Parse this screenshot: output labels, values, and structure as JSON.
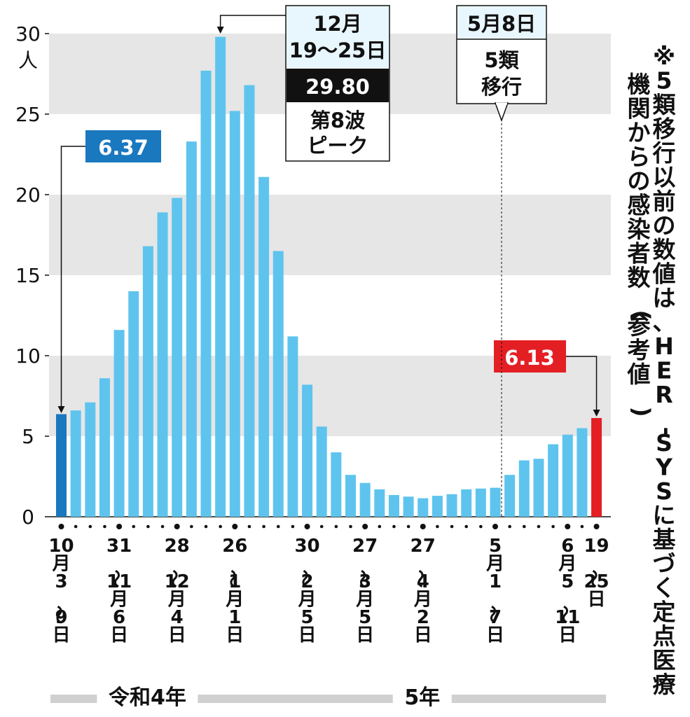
{
  "chart_data": {
    "type": "bar",
    "unit": "人",
    "ylim": [
      0,
      30
    ],
    "yticks": [
      0,
      5,
      10,
      15,
      20,
      25,
      30
    ],
    "grid": "alternating horizontal bands",
    "values": [
      6.37,
      6.6,
      7.1,
      8.6,
      11.6,
      14.0,
      16.8,
      18.9,
      19.8,
      23.3,
      27.7,
      29.8,
      25.2,
      26.8,
      21.1,
      16.5,
      11.2,
      8.2,
      5.6,
      4.0,
      2.6,
      2.1,
      1.7,
      1.35,
      1.25,
      1.15,
      1.3,
      1.4,
      1.7,
      1.75,
      1.8,
      2.6,
      3.5,
      3.6,
      4.5,
      5.1,
      5.5,
      6.13
    ],
    "x_labels": [
      {
        "index": 0,
        "text": "10月3〜9日"
      },
      {
        "index": 4,
        "text": "31〜11月6日"
      },
      {
        "index": 8,
        "text": "28〜12月4日"
      },
      {
        "index": 12,
        "text": "26〜1月1日"
      },
      {
        "index": 17,
        "text": "30〜2月5日"
      },
      {
        "index": 21,
        "text": "27〜3月5日"
      },
      {
        "index": 25,
        "text": "27〜4月2日"
      },
      {
        "index": 30,
        "text": "5月1〜7日"
      },
      {
        "index": 35,
        "text": "6月5〜11日"
      },
      {
        "index": 37,
        "text": "19〜25日"
      }
    ],
    "eras": [
      {
        "label": "令和4年",
        "start": 0,
        "end": 12
      },
      {
        "label": "5年",
        "start": 13,
        "end": 37
      }
    ],
    "colors": {
      "bar": "#5ec4ee",
      "first_bar": "#1a78bf",
      "last_bar": "#e41f24",
      "band": "#e6e6e6",
      "first_label_bg": "#1a78bf",
      "last_label_bg": "#e41f24",
      "box_bg": "#e8f6fd",
      "peak_value_bg": "#111111"
    },
    "annotations": {
      "first": {
        "index": 0,
        "label": "6.37"
      },
      "last": {
        "index": 37,
        "label": "6.13"
      },
      "peak": {
        "index": 11,
        "date_line1": "12月",
        "date_line2": "19〜25日",
        "value": "29.80",
        "text_line1": "第8波",
        "text_line2": "ピーク"
      },
      "shift": {
        "index": 31,
        "date": "5月8日",
        "line1": "5類",
        "line2": "移行"
      }
    },
    "note": "※5類移行以前の数値は、HER-SYSに基づく定点医療機関からの感染者数(参考値)"
  }
}
